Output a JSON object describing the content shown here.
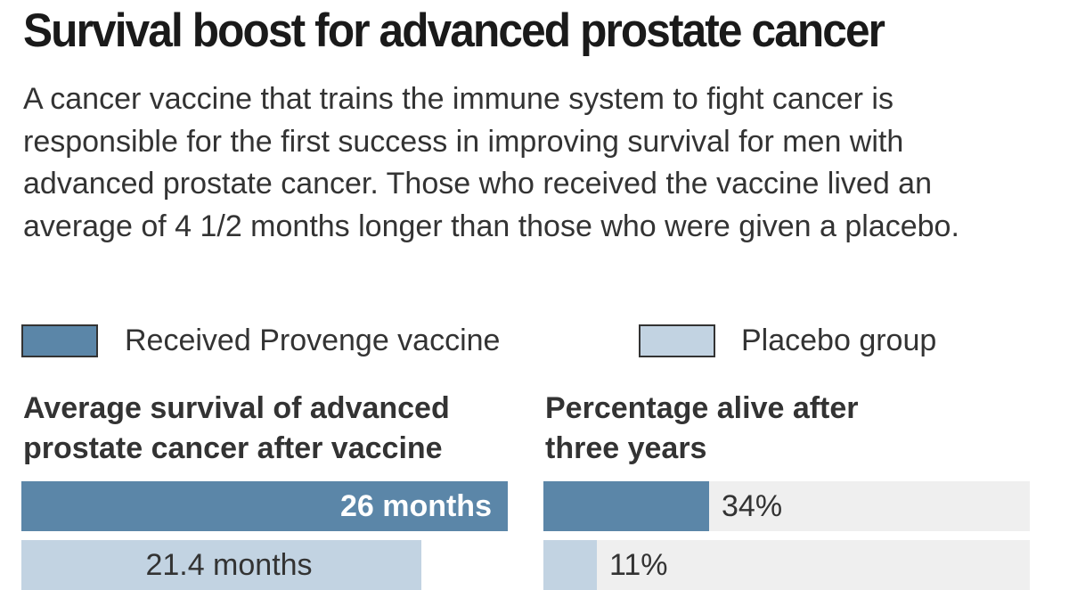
{
  "title": "Survival boost for advanced prostate cancer",
  "subtitle": "A cancer vaccine that trains the immune system to fight cancer is responsible for the first success in improving survival for men with advanced prostate cancer. Those who received the vaccine lived an average of 4 1/2 months longer than those who were given a placebo.",
  "colors": {
    "vaccine": "#5b86a8",
    "placebo": "#c2d3e2",
    "track": "#efefef"
  },
  "legend": [
    {
      "label": "Received Provenge vaccine",
      "color": "#5b86a8"
    },
    {
      "label": "Placebo group",
      "color": "#c2d3e2"
    }
  ],
  "chart_data": [
    {
      "type": "bar",
      "orientation": "horizontal",
      "title": "Average survival of advanced prostate cancer after vaccine",
      "categories": [
        "Received Provenge vaccine",
        "Placebo group"
      ],
      "values": [
        26,
        21.4
      ],
      "data_labels": [
        "26 months",
        "21.4 months"
      ],
      "max": 26
    },
    {
      "type": "bar",
      "orientation": "horizontal",
      "title": "Percentage alive after three years",
      "categories": [
        "Received Provenge vaccine",
        "Placebo group"
      ],
      "values": [
        34,
        11
      ],
      "data_labels": [
        "34%",
        "11%"
      ],
      "max": 100
    }
  ]
}
